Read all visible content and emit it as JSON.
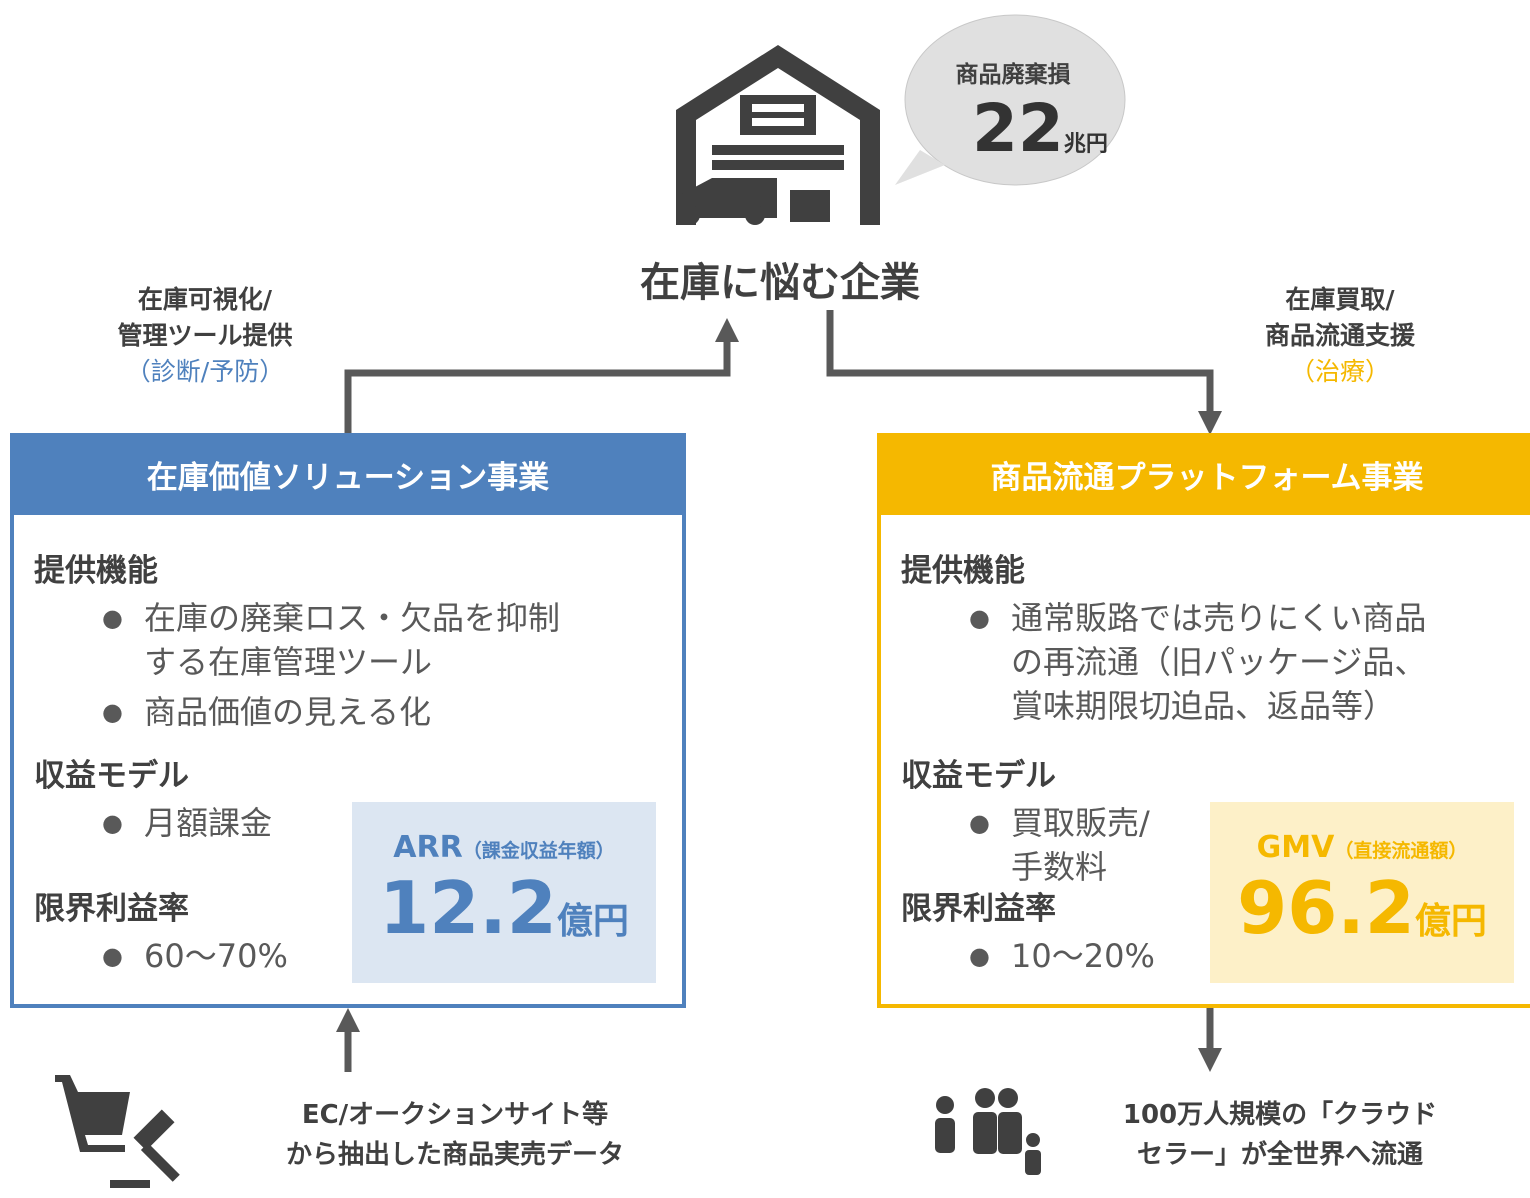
{
  "center": {
    "label": "在庫に悩む企業",
    "bubble": {
      "title": "商品廃棄損",
      "value": "22",
      "unit": "兆円"
    }
  },
  "left_flow": {
    "lines": [
      "在庫可視化/",
      "管理ツール提供"
    ],
    "note": "（診断/予防）"
  },
  "right_flow": {
    "lines": [
      "在庫買取/",
      "商品流通支援"
    ],
    "note": "（治療）"
  },
  "left_box": {
    "title": "在庫価値ソリューション事業",
    "sections": [
      {
        "heading": "提供機能",
        "items": [
          [
            "在庫の廃棄ロス・欠品を抑制",
            "する在庫管理ツール"
          ],
          [
            "商品価値の見える化"
          ]
        ]
      },
      {
        "heading": "収益モデル",
        "items": [
          [
            "月額課金"
          ]
        ]
      },
      {
        "heading": "限界利益率",
        "items": [
          [
            "60〜70%"
          ]
        ]
      }
    ],
    "metric": {
      "name": "ARR",
      "note": "（課金収益年額）",
      "value": "12.2",
      "unit": "億円"
    }
  },
  "right_box": {
    "title": "商品流通プラットフォーム事業",
    "sections": [
      {
        "heading": "提供機能",
        "items": [
          [
            "通常販路では売りにくい商品",
            "の再流通（旧パッケージ品、",
            "賞味期限切迫品、返品等）"
          ]
        ]
      },
      {
        "heading": "収益モデル",
        "items": [
          [
            "買取販売/",
            "手数料"
          ]
        ]
      },
      {
        "heading": "限界利益率",
        "items": [
          [
            "10〜20%"
          ]
        ]
      }
    ],
    "metric": {
      "name": "GMV",
      "note": "（直接流通額）",
      "value": "96.2",
      "unit": "億円"
    }
  },
  "left_source": {
    "lines": [
      "EC/オークションサイト等",
      "から抽出した商品実売データ"
    ]
  },
  "right_source": {
    "lines": [
      "100万人規模の「クラウド",
      "セラー」が全世界へ流通"
    ]
  }
}
